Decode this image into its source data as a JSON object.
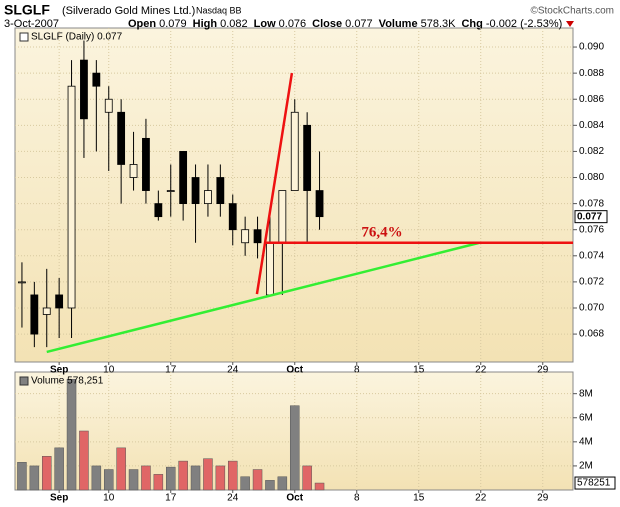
{
  "header": {
    "symbol": "SLGLF",
    "name": "(Silverado Gold Mines Ltd.)",
    "exchange": "Nasdaq BB",
    "date": "3-Oct-2007",
    "stats": [
      {
        "label": "Open",
        "value": "0.079"
      },
      {
        "label": "High",
        "value": "0.082"
      },
      {
        "label": "Low",
        "value": "0.076"
      },
      {
        "label": "Close",
        "value": "0.077"
      },
      {
        "label": "Volume",
        "value": "578.3K"
      },
      {
        "label": "Chg",
        "value": "-0.002 (-2.53%)"
      }
    ],
    "credit": "©StockCharts.com"
  },
  "chart_data": [
    {
      "type": "candlestick",
      "legend": "SLGLF (Daily) 0.077",
      "x": [
        0,
        1,
        2,
        3,
        4,
        5,
        6,
        7,
        8,
        9,
        10,
        11,
        12,
        13,
        14,
        15,
        16,
        17,
        18,
        19,
        20,
        21,
        22,
        23,
        24
      ],
      "open": [
        0.072,
        0.071,
        0.0695,
        0.071,
        0.07,
        0.089,
        0.088,
        0.085,
        0.085,
        0.08,
        0.083,
        0.078,
        0.079,
        0.082,
        0.08,
        0.078,
        0.08,
        0.078,
        0.075,
        0.076,
        0.071,
        0.075,
        0.079,
        0.084,
        0.079
      ],
      "high": [
        0.0735,
        0.072,
        0.073,
        0.0723,
        0.089,
        0.0905,
        0.089,
        0.087,
        0.086,
        0.0835,
        0.0845,
        0.079,
        0.081,
        0.082,
        0.081,
        0.081,
        0.081,
        0.0787,
        0.077,
        0.077,
        0.077,
        0.079,
        0.086,
        0.085,
        0.082
      ],
      "low": [
        0.0685,
        0.067,
        0.067,
        0.0677,
        0.0677,
        0.0815,
        0.082,
        0.0805,
        0.078,
        0.079,
        0.078,
        0.0767,
        0.077,
        0.0767,
        0.075,
        0.077,
        0.077,
        0.0748,
        0.074,
        0.0738,
        0.0709,
        0.071,
        0.079,
        0.075,
        0.076
      ],
      "close": [
        0.072,
        0.068,
        0.07,
        0.07,
        0.087,
        0.0845,
        0.087,
        0.086,
        0.081,
        0.081,
        0.079,
        0.077,
        0.079,
        0.078,
        0.078,
        0.079,
        0.078,
        0.076,
        0.076,
        0.075,
        0.075,
        0.079,
        0.085,
        0.079,
        0.077
      ],
      "up_color": "#fdf3d8",
      "down_color": "#000000",
      "xlim": [
        -0.56,
        44.44
      ],
      "xticks": [
        {
          "value": 3,
          "label": "Sep"
        },
        {
          "value": 7,
          "label": "10"
        },
        {
          "value": 12,
          "label": "17"
        },
        {
          "value": 17,
          "label": "24"
        },
        {
          "value": 22,
          "label": "Oct"
        },
        {
          "value": 27,
          "label": "8"
        },
        {
          "value": 32,
          "label": "15"
        },
        {
          "value": 37,
          "label": "22"
        },
        {
          "value": 42,
          "label": "29"
        }
      ],
      "ylim": [
        0.06586,
        0.09146
      ],
      "yticks": [
        0.068,
        {
          "value": 0.07,
          "label": "0.070"
        },
        0.072,
        0.074,
        0.076,
        0.078,
        {
          "value": 0.08,
          "label": "0.080"
        },
        0.082,
        0.084,
        0.086,
        0.088,
        {
          "value": 0.09,
          "label": "0.090"
        }
      ],
      "grid": true,
      "lines": [
        {
          "color": "#33ee33",
          "x": [
            2.0,
            36.9
          ],
          "y": [
            0.06663,
            0.075
          ]
        },
        {
          "color": "#ee1111",
          "x": [
            18.95,
            21.77
          ],
          "y": [
            0.07107,
            0.08801
          ]
        },
        {
          "color": "#ee1111",
          "x": [
            19.6,
            44.44
          ],
          "y": [
            0.075,
            0.075
          ]
        }
      ],
      "annotation": "76,4%"
    },
    {
      "type": "bar",
      "legend": "Volume 578,251",
      "x": [
        0,
        1,
        2,
        3,
        4,
        5,
        6,
        7,
        8,
        9,
        10,
        11,
        12,
        13,
        14,
        15,
        16,
        17,
        18,
        19,
        20,
        21,
        22,
        23,
        24
      ],
      "values": [
        2300000,
        2000000,
        2800000,
        3500000,
        9200000,
        4900000,
        2000000,
        1700000,
        3500000,
        1700000,
        2000000,
        1300000,
        1900000,
        2400000,
        2000000,
        2600000,
        2000000,
        2400000,
        1100000,
        1700000,
        800000,
        1100000,
        7000000,
        2000000,
        578251
      ],
      "colors": [
        "#808080",
        "#808080",
        "#e06666",
        "#808080",
        "#808080",
        "#e06666",
        "#808080",
        "#808080",
        "#e06666",
        "#808080",
        "#e06666",
        "#e06666",
        "#808080",
        "#e06666",
        "#808080",
        "#e06666",
        "#e06666",
        "#e06666",
        "#808080",
        "#e06666",
        "#808080",
        "#808080",
        "#808080",
        "#e06666",
        "#e06666"
      ],
      "xlim": [
        -0.56,
        44.44
      ],
      "xticks": [
        {
          "value": 3,
          "label": "Sep"
        },
        {
          "value": 7,
          "label": "10"
        },
        {
          "value": 12,
          "label": "17"
        },
        {
          "value": 17,
          "label": "24"
        },
        {
          "value": 22,
          "label": "Oct"
        },
        {
          "value": 27,
          "label": "8"
        },
        {
          "value": 32,
          "label": "15"
        },
        {
          "value": 37,
          "label": "22"
        },
        {
          "value": 42,
          "label": "29"
        }
      ],
      "ylim": [
        0,
        9800000
      ],
      "yticks": [
        {
          "value": 2000000,
          "label": "2M"
        },
        {
          "value": 4000000,
          "label": "4M"
        },
        {
          "value": 6000000,
          "label": "6M"
        },
        {
          "value": 8000000,
          "label": "8M"
        }
      ],
      "grid": true
    }
  ]
}
